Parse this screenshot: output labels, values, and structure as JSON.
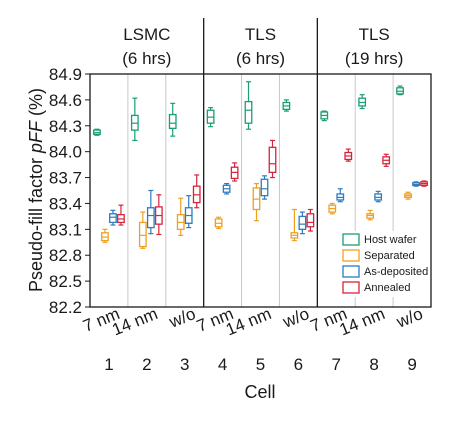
{
  "chart_data": {
    "type": "box",
    "ylabel": "Pseudo-fill factor ",
    "ylabel_italic": "pFF",
    "ylabel_unit": " (%)",
    "xlabel": "Cell",
    "ylim": [
      82.2,
      84.9
    ],
    "yticks": [
      "84.9",
      "84.6",
      "84.3",
      "84.0",
      "83.7",
      "83.4",
      "83.1",
      "82.8",
      "82.5",
      "82.2"
    ],
    "groups": [
      {
        "title_line1": "LSMC",
        "title_line2": "(6 hrs)"
      },
      {
        "title_line1": "TLS",
        "title_line2": "(6 hrs)"
      },
      {
        "title_line1": "TLS",
        "title_line2": "(19 hrs)"
      }
    ],
    "cells": [
      "1",
      "2",
      "3",
      "4",
      "5",
      "6",
      "7",
      "8",
      "9"
    ],
    "categories": [
      "7 nm",
      "14 nm",
      "w/o",
      "7 nm",
      "14 nm",
      "w/o",
      "7 nm",
      "14 nm",
      "w/o"
    ],
    "legend": [
      "Host wafer",
      "Separated",
      "As-deposited",
      "Annealed"
    ],
    "colors": {
      "Host wafer": "#1a9e77",
      "Separated": "#f0a020",
      "As-deposited": "#2b7cc0",
      "Annealed": "#d8233a"
    },
    "series": [
      {
        "name": "Host wafer",
        "boxes": [
          {
            "cell": "1",
            "min": 84.19,
            "q1": 84.2,
            "median": 84.22,
            "q3": 84.25,
            "max": 84.26
          },
          {
            "cell": "2",
            "min": 84.13,
            "q1": 84.25,
            "median": 84.33,
            "q3": 84.42,
            "max": 84.62
          },
          {
            "cell": "3",
            "min": 84.18,
            "q1": 84.27,
            "median": 84.33,
            "q3": 84.43,
            "max": 84.56
          },
          {
            "cell": "4",
            "min": 84.29,
            "q1": 84.33,
            "median": 84.4,
            "q3": 84.48,
            "max": 84.51
          },
          {
            "cell": "5",
            "min": 84.26,
            "q1": 84.33,
            "median": 84.48,
            "q3": 84.58,
            "max": 84.81
          },
          {
            "cell": "6",
            "min": 84.47,
            "q1": 84.49,
            "median": 84.53,
            "q3": 84.57,
            "max": 84.6
          },
          {
            "cell": "7",
            "min": 84.36,
            "q1": 84.38,
            "median": 84.42,
            "q3": 84.46,
            "max": 84.47
          },
          {
            "cell": "8",
            "min": 84.5,
            "q1": 84.53,
            "median": 84.57,
            "q3": 84.62,
            "max": 84.66
          },
          {
            "cell": "9",
            "min": 84.66,
            "q1": 84.67,
            "median": 84.7,
            "q3": 84.74,
            "max": 84.76
          }
        ]
      },
      {
        "name": "Separated",
        "boxes": [
          {
            "cell": "1",
            "min": 82.95,
            "q1": 82.97,
            "median": 83.01,
            "q3": 83.06,
            "max": 83.1
          },
          {
            "cell": "2",
            "min": 82.88,
            "q1": 82.9,
            "median": 83.03,
            "q3": 83.18,
            "max": 83.3
          },
          {
            "cell": "3",
            "min": 83.03,
            "q1": 83.1,
            "median": 83.18,
            "q3": 83.27,
            "max": 83.46
          },
          {
            "cell": "4",
            "min": 83.11,
            "q1": 83.13,
            "median": 83.17,
            "q3": 83.22,
            "max": 83.24
          },
          {
            "cell": "5",
            "min": 83.2,
            "q1": 83.33,
            "median": 83.45,
            "q3": 83.58,
            "max": 83.63
          },
          {
            "cell": "6",
            "min": 82.97,
            "q1": 83.0,
            "median": 83.03,
            "q3": 83.06,
            "max": 83.33
          },
          {
            "cell": "7",
            "min": 83.28,
            "q1": 83.3,
            "median": 83.34,
            "q3": 83.38,
            "max": 83.4
          },
          {
            "cell": "8",
            "min": 83.21,
            "q1": 83.23,
            "median": 83.26,
            "q3": 83.28,
            "max": 83.32
          },
          {
            "cell": "9",
            "min": 83.45,
            "q1": 83.47,
            "median": 83.49,
            "q3": 83.51,
            "max": 83.53
          }
        ]
      },
      {
        "name": "As-deposited",
        "boxes": [
          {
            "cell": "1",
            "min": 83.15,
            "q1": 83.18,
            "median": 83.24,
            "q3": 83.28,
            "max": 83.32
          },
          {
            "cell": "2",
            "min": 83.05,
            "q1": 83.12,
            "median": 83.26,
            "q3": 83.35,
            "max": 83.55
          },
          {
            "cell": "3",
            "min": 83.12,
            "q1": 83.17,
            "median": 83.26,
            "q3": 83.35,
            "max": 83.49
          },
          {
            "cell": "4",
            "min": 83.51,
            "q1": 83.53,
            "median": 83.57,
            "q3": 83.61,
            "max": 83.63
          },
          {
            "cell": "5",
            "min": 83.45,
            "q1": 83.49,
            "median": 83.57,
            "q3": 83.68,
            "max": 83.72
          },
          {
            "cell": "6",
            "min": 83.05,
            "q1": 83.1,
            "median": 83.16,
            "q3": 83.25,
            "max": 83.3
          },
          {
            "cell": "7",
            "min": 83.42,
            "q1": 83.44,
            "median": 83.47,
            "q3": 83.51,
            "max": 83.57
          },
          {
            "cell": "8",
            "min": 83.42,
            "q1": 83.44,
            "median": 83.47,
            "q3": 83.51,
            "max": 83.54
          },
          {
            "cell": "9",
            "min": 83.6,
            "q1": 83.61,
            "median": 83.62,
            "q3": 83.64,
            "max": 83.65
          }
        ]
      },
      {
        "name": "Annealed",
        "boxes": [
          {
            "cell": "1",
            "min": 83.15,
            "q1": 83.18,
            "median": 83.22,
            "q3": 83.27,
            "max": 83.38
          },
          {
            "cell": "2",
            "min": 83.04,
            "q1": 83.16,
            "median": 83.26,
            "q3": 83.36,
            "max": 83.5
          },
          {
            "cell": "3",
            "min": 83.35,
            "q1": 83.41,
            "median": 83.5,
            "q3": 83.6,
            "max": 83.73
          },
          {
            "cell": "4",
            "min": 83.66,
            "q1": 83.69,
            "median": 83.76,
            "q3": 83.82,
            "max": 83.87
          },
          {
            "cell": "5",
            "min": 83.7,
            "q1": 83.76,
            "median": 83.86,
            "q3": 84.05,
            "max": 84.13
          },
          {
            "cell": "6",
            "min": 83.08,
            "q1": 83.13,
            "median": 83.18,
            "q3": 83.28,
            "max": 83.33
          },
          {
            "cell": "7",
            "min": 83.89,
            "q1": 83.91,
            "median": 83.95,
            "q3": 83.99,
            "max": 84.03
          },
          {
            "cell": "8",
            "min": 83.83,
            "q1": 83.86,
            "median": 83.9,
            "q3": 83.94,
            "max": 83.97
          },
          {
            "cell": "9",
            "min": 83.6,
            "q1": 83.61,
            "median": 83.63,
            "q3": 83.65,
            "max": 83.66
          }
        ]
      }
    ]
  }
}
